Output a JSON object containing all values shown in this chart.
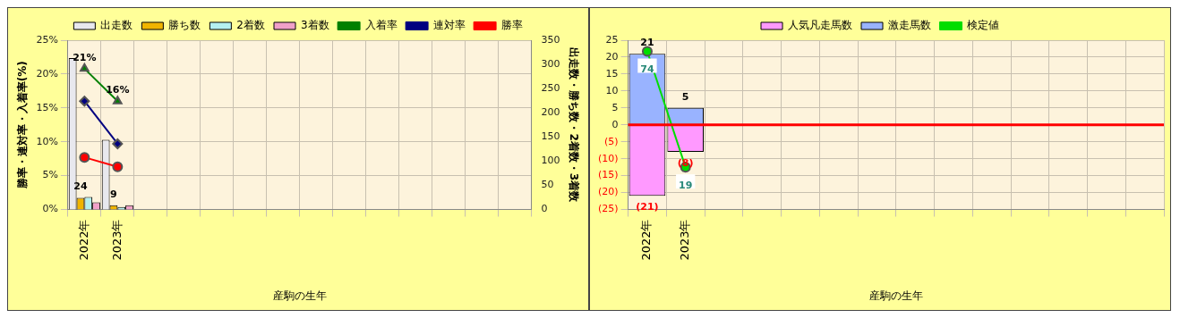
{
  "chart_data": [
    {
      "type": "bar",
      "xlabel": "産駒の生年",
      "ylabel": "勝率・連対率・入着率(%)",
      "y2label": "出走数・勝ち数・2着数・3着数",
      "categories": [
        "2022年",
        "2023年",
        null,
        null,
        null,
        null,
        null,
        null,
        null,
        null,
        null,
        null,
        null,
        null
      ],
      "series": [
        {
          "name": "出走数",
          "axis": "y2",
          "color": "#e8e8ee",
          "values": [
            313,
            144,
            null,
            null,
            null,
            null,
            null,
            null,
            null,
            null,
            null,
            null,
            null,
            null
          ]
        },
        {
          "name": "勝ち数",
          "axis": "y2",
          "color": "#f0b400",
          "values": [
            24,
            9,
            null,
            null,
            null,
            null,
            null,
            null,
            null,
            null,
            null,
            null,
            null,
            null
          ],
          "value_labels": [
            "24",
            "9",
            null,
            null,
            null,
            null,
            null,
            null,
            null,
            null,
            null,
            null,
            null,
            null
          ]
        },
        {
          "name": "2着数",
          "axis": "y2",
          "color": "#b4f0f0",
          "values": [
            26,
            5,
            null,
            null,
            null,
            null,
            null,
            null,
            null,
            null,
            null,
            null,
            null,
            null
          ]
        },
        {
          "name": "3着数",
          "axis": "y2",
          "color": "#f0a0c8",
          "values": [
            15,
            9,
            null,
            null,
            null,
            null,
            null,
            null,
            null,
            null,
            null,
            null,
            null,
            null
          ]
        },
        {
          "name": "入着率",
          "type": "line",
          "color": "#008000",
          "marker": "triangle",
          "values": [
            20.8,
            16.0,
            null,
            null,
            null,
            null,
            null,
            null,
            null,
            null,
            null,
            null,
            null,
            null
          ],
          "value_labels": [
            "21%",
            "16%",
            null,
            null,
            null,
            null,
            null,
            null,
            null,
            null,
            null,
            null,
            null,
            null
          ]
        },
        {
          "name": "連対率",
          "type": "line",
          "color": "#000080",
          "marker": "diamond",
          "values": [
            16.0,
            9.7,
            null,
            null,
            null,
            null,
            null,
            null,
            null,
            null,
            null,
            null,
            null,
            null
          ]
        },
        {
          "name": "勝率",
          "type": "line",
          "color": "#ff0000",
          "marker": "circle",
          "values": [
            7.7,
            6.3,
            null,
            null,
            null,
            null,
            null,
            null,
            null,
            null,
            null,
            null,
            null,
            null
          ]
        }
      ],
      "ylim": [
        0,
        25
      ],
      "yticks": [
        {
          "value": 0,
          "label": "0%"
        },
        {
          "value": 5,
          "label": "5%"
        },
        {
          "value": 10,
          "label": "10%"
        },
        {
          "value": 15,
          "label": "15%"
        },
        {
          "value": 20,
          "label": "20%"
        },
        {
          "value": 25,
          "label": "25%"
        }
      ],
      "y2lim": [
        0,
        350
      ],
      "y2ticks": [
        0,
        50,
        100,
        150,
        200,
        250,
        300,
        350
      ],
      "grid": true,
      "legend": "top"
    },
    {
      "type": "bar",
      "stacked": true,
      "xlabel": "産駒の生年",
      "categories": [
        "2022年",
        "2023年",
        null,
        null,
        null,
        null,
        null,
        null,
        null,
        null,
        null,
        null,
        null,
        null
      ],
      "series": [
        {
          "name": "人気凡走馬数",
          "color": "#ff99ff",
          "values": [
            -21,
            -8,
            null,
            null,
            null,
            null,
            null,
            null,
            null,
            null,
            null,
            null,
            null,
            null
          ],
          "value_labels": [
            "(21)",
            "(8)",
            null,
            null,
            null,
            null,
            null,
            null,
            null,
            null,
            null,
            null,
            null,
            null
          ]
        },
        {
          "name": "激走馬数",
          "color": "#99b3ff",
          "values": [
            21,
            5,
            null,
            null,
            null,
            null,
            null,
            null,
            null,
            null,
            null,
            null,
            null,
            null
          ],
          "value_labels": [
            "21",
            "5",
            null,
            null,
            null,
            null,
            null,
            null,
            null,
            null,
            null,
            null,
            null,
            null
          ]
        },
        {
          "name": "検定値",
          "type": "line",
          "color": "#00dd00",
          "marker": "circle",
          "values": [
            21.7,
            -12.5,
            null,
            null,
            null,
            null,
            null,
            null,
            null,
            null,
            null,
            null,
            null,
            null
          ]
        }
      ],
      "annotations": [
        {
          "text": "74",
          "x": "2022年",
          "y": 21.7
        },
        {
          "text": "19",
          "x": "2023年",
          "y": -12.5
        }
      ],
      "ylim": [
        -25,
        25
      ],
      "yticks": [
        {
          "value": -25,
          "label": "(25)"
        },
        {
          "value": -20,
          "label": "(20)"
        },
        {
          "value": -15,
          "label": "(15)"
        },
        {
          "value": -10,
          "label": "(10)"
        },
        {
          "value": -5,
          "label": "(5)"
        },
        0,
        5,
        10,
        15,
        20,
        25
      ],
      "ref_lines": [
        {
          "axis": "y",
          "value": 0,
          "color": "#ff0000"
        }
      ],
      "grid": true,
      "legend": "top"
    }
  ]
}
